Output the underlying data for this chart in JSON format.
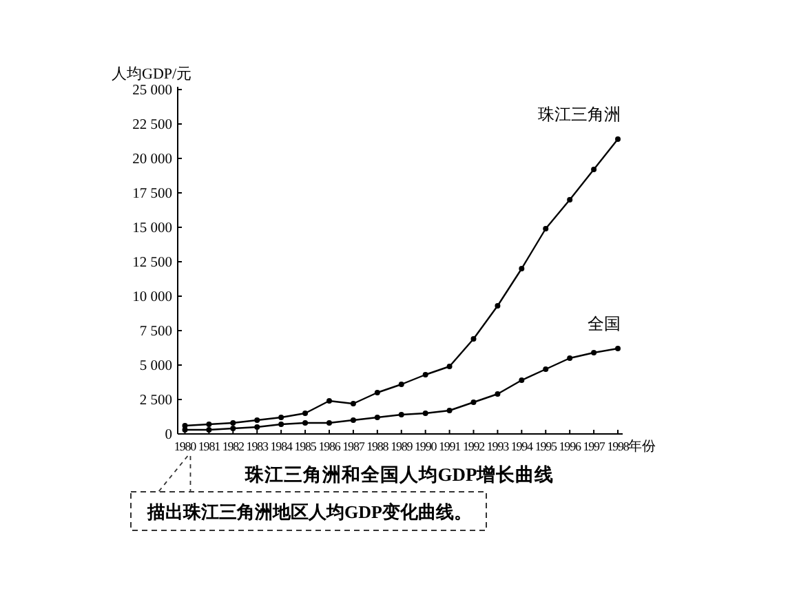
{
  "chart_data": {
    "type": "line",
    "title": "珠江三角洲和全国人均GDP增长曲线",
    "xlabel": "年份",
    "ylabel": "人均GDP/元",
    "annotations": [
      "描出珠江三角洲地区人均GDP变化曲线。"
    ],
    "x": [
      1980,
      1981,
      1982,
      1983,
      1984,
      1985,
      1986,
      1987,
      1988,
      1989,
      1990,
      1991,
      1992,
      1993,
      1994,
      1995,
      1996,
      1997,
      1998
    ],
    "series": [
      {
        "name": "珠江三角洲",
        "color": "#000000",
        "values": [
          600,
          700,
          800,
          1000,
          1200,
          1500,
          2400,
          2200,
          3000,
          3600,
          4300,
          4900,
          6900,
          9300,
          12000,
          14900,
          17000,
          19200,
          21400
        ]
      },
      {
        "name": "全国",
        "color": "#000000",
        "values": [
          300,
          300,
          400,
          500,
          700,
          800,
          800,
          1000,
          1200,
          1400,
          1500,
          1700,
          2300,
          2900,
          3900,
          4700,
          5500,
          5900,
          6200
        ]
      }
    ],
    "xlim": [
      1979.7,
      1998.2
    ],
    "xticks": [
      1980,
      1981,
      1982,
      1983,
      1984,
      1985,
      1986,
      1987,
      1988,
      1989,
      1990,
      1991,
      1992,
      1993,
      1994,
      1995,
      1996,
      1997,
      1998
    ],
    "ylim": [
      0,
      25000
    ],
    "yticks": [
      0,
      {
        "value": 2500,
        "label": "2 500"
      },
      {
        "value": 5000,
        "label": "5 000"
      },
      {
        "value": 7500,
        "label": "7 500"
      },
      {
        "value": 10000,
        "label": "10 000"
      },
      {
        "value": 12500,
        "label": "12 500"
      },
      {
        "value": 15000,
        "label": "15 000"
      },
      {
        "value": 17500,
        "label": "17 500"
      },
      {
        "value": 20000,
        "label": "20 000"
      },
      {
        "value": 22500,
        "label": "22 500"
      },
      {
        "value": 25000,
        "label": "25 000"
      }
    ],
    "marker": "circle",
    "line_style": "solid",
    "grid": false,
    "legend": false
  }
}
